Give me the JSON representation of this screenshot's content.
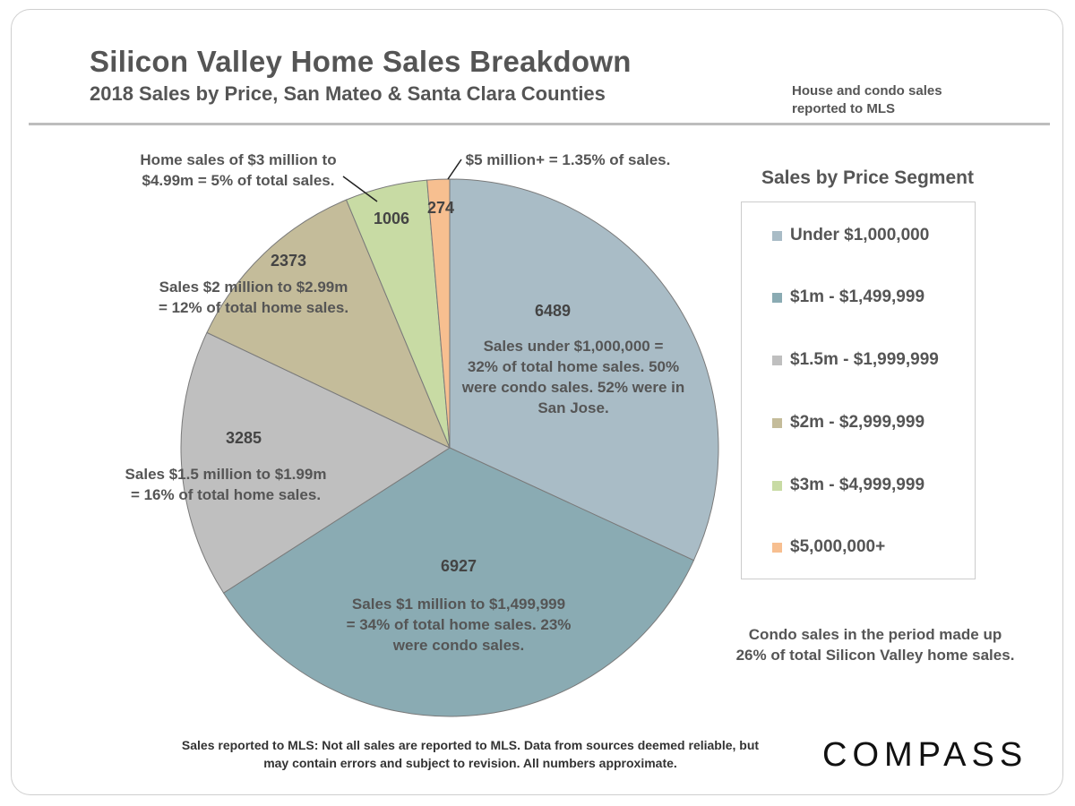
{
  "header": {
    "title": "Silicon Valley Home Sales Breakdown",
    "subtitle": "2018 Sales by Price, San Mateo & Santa Clara Counties",
    "note_line1": "House and condo sales",
    "note_line2": "reported to MLS"
  },
  "legend": {
    "title": "Sales by Price Segment",
    "items": [
      {
        "label": "Under $1,000,000",
        "color": "#a9bcc6"
      },
      {
        "label": "$1m - $1,499,999",
        "color": "#8aabb3"
      },
      {
        "label": "$1.5m - $1,999,999",
        "color": "#bfbfbf"
      },
      {
        "label": "$2m - $2,999,999",
        "color": "#c4bc9a"
      },
      {
        "label": "$3m - $4,999,999",
        "color": "#c8dba4"
      },
      {
        "label": "$5,000,000+",
        "color": "#f7bf90"
      }
    ]
  },
  "chart_data": {
    "type": "pie",
    "title": "Silicon Valley Home Sales Breakdown",
    "subtitle": "2018 Sales by Price, San Mateo & Santa Clara Counties",
    "slices": [
      {
        "name": "Under $1,000,000",
        "value": 6489,
        "color": "#a9bcc6",
        "annotation": [
          "Sales under $1,000,000  =",
          "32% of total home sales. 50%",
          "were condo sales. 52% were in",
          "San Jose."
        ]
      },
      {
        "name": "$1m - $1,499,999",
        "value": 6927,
        "color": "#8aabb3",
        "annotation": [
          "Sales $1 million to $1,499,999",
          "= 34% of total home sales.  23%",
          "were condo sales."
        ]
      },
      {
        "name": "$1.5m - $1,999,999",
        "value": 3285,
        "color": "#bfbfbf",
        "annotation": [
          "Sales $1.5 million to $1.99m",
          "= 16% of total home sales."
        ]
      },
      {
        "name": "$2m - $2,999,999",
        "value": 2373,
        "color": "#c4bc9a",
        "annotation": [
          "Sales $2 million to $2.99m",
          "= 12% of total home sales."
        ]
      },
      {
        "name": "$3m - $4,999,999",
        "value": 1006,
        "color": "#c8dba4",
        "annotation": [
          "Home sales of $3 million to",
          "$4.99m = 5% of total sales."
        ]
      },
      {
        "name": "$5,000,000+",
        "value": 274,
        "color": "#f7bf90",
        "annotation": [
          "$5 million+ = 1.35% of sales."
        ]
      }
    ],
    "legend_position": "right"
  },
  "notes": {
    "condo_line1": "Condo sales in the period made up",
    "condo_line2": "26% of total Silicon Valley home sales."
  },
  "footer": {
    "line1": "Sales reported to MLS: Not all sales are reported to MLS. Data from sources deemed reliable, but",
    "line2": "may contain errors and subject to revision. All numbers approximate."
  },
  "brand": {
    "logo_text": "COMPASS"
  }
}
